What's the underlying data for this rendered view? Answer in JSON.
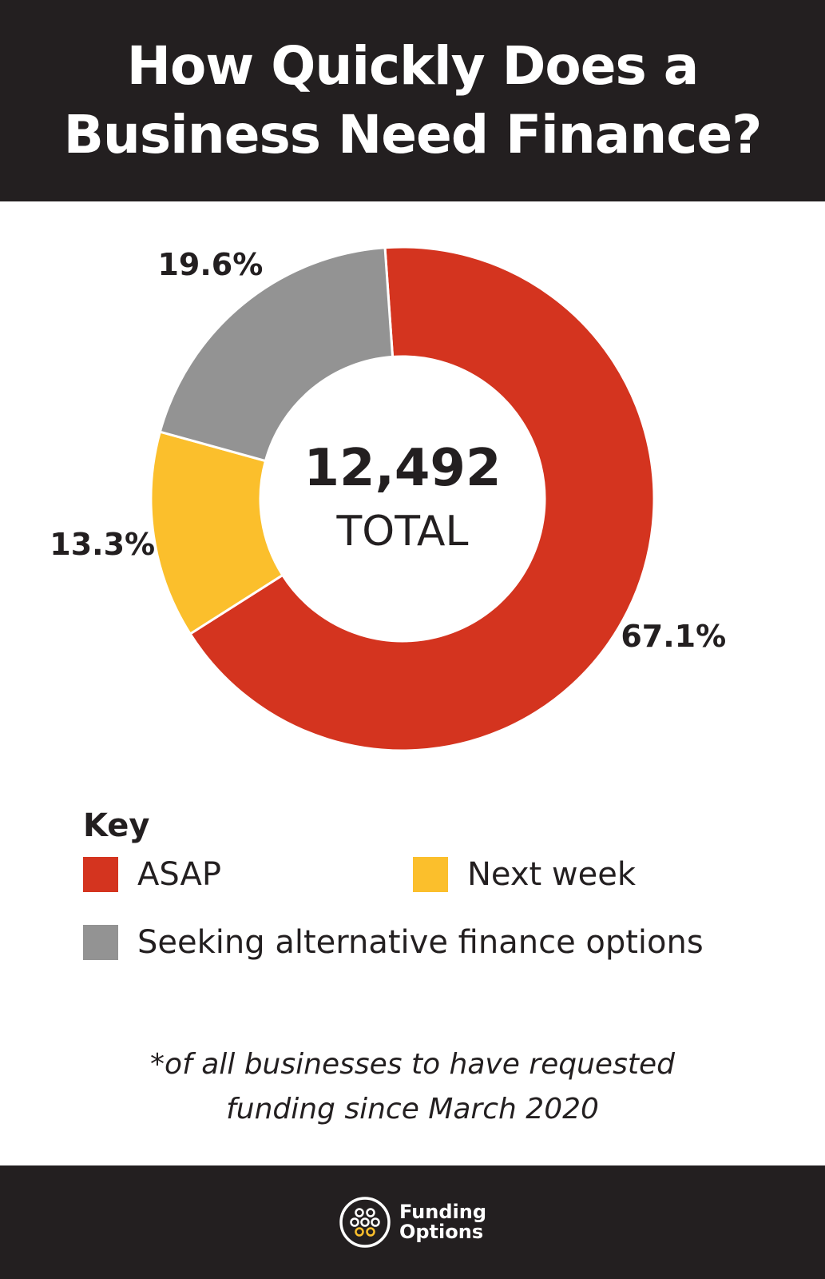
{
  "header": {
    "title_line1": "How Quickly Does a",
    "title_line2": "Business Need Finance?"
  },
  "chart_data": {
    "type": "pie",
    "categories": [
      "ASAP",
      "Next week",
      "Seeking alternative finance options"
    ],
    "values": [
      67.1,
      13.3,
      19.6
    ],
    "value_labels": [
      "67.1%",
      "13.3%",
      "19.6%"
    ],
    "colors": [
      "#d4341f",
      "#fbbf2c",
      "#939393"
    ],
    "center_value": "12,492",
    "center_label": "TOTAL",
    "title": "How Quickly Does a Business Need Finance?"
  },
  "legend": {
    "title": "Key",
    "items": [
      {
        "label": "ASAP",
        "color": "#d4341f"
      },
      {
        "label": "Next week",
        "color": "#fbbf2c"
      },
      {
        "label": "Seeking alternative finance options",
        "color": "#939393"
      }
    ]
  },
  "footnote": {
    "line1": "*of all businesses to have requested",
    "line2": "funding since March 2020"
  },
  "footer": {
    "brand_line1": "Funding",
    "brand_line2": "Options",
    "logo_icon": "funding-options-logo-icon"
  }
}
